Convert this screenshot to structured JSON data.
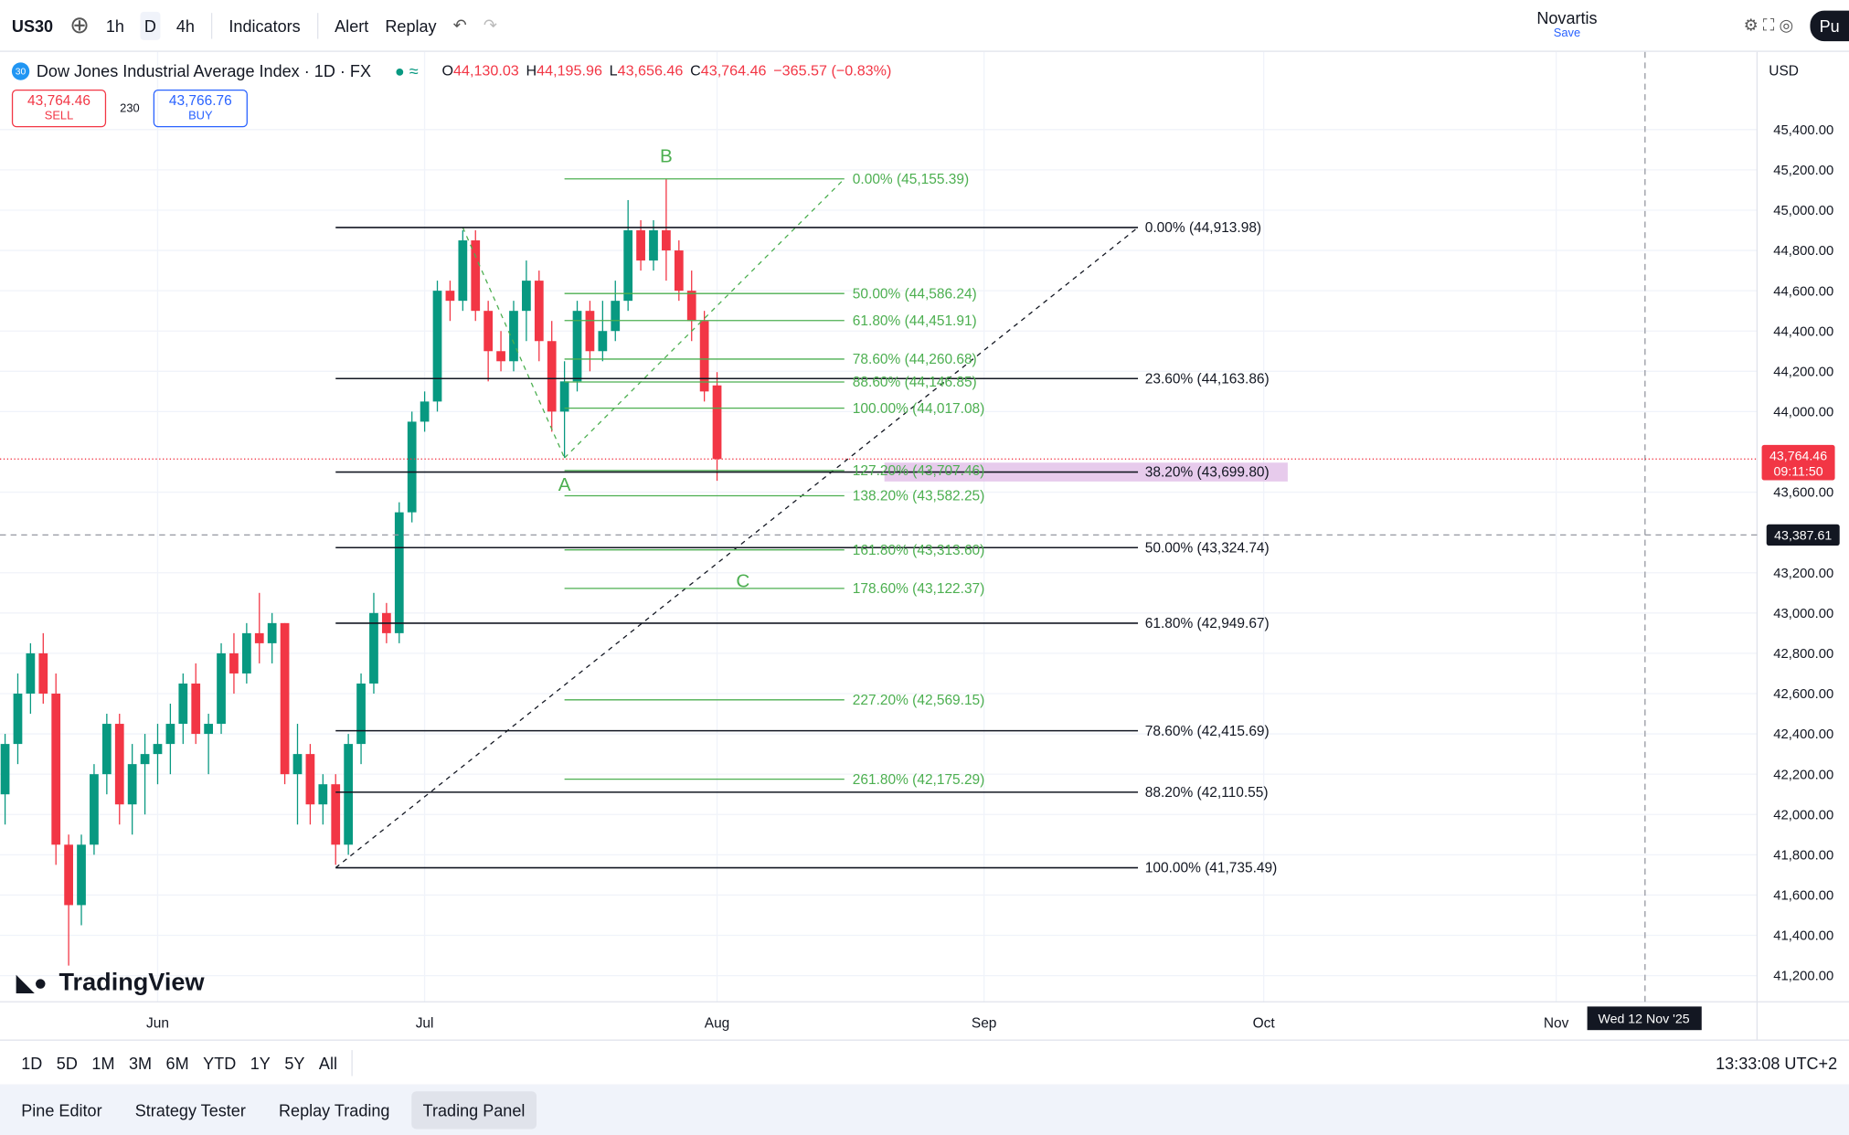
{
  "toolbar": {
    "symbol": "US30",
    "intervals": [
      "1h",
      "D",
      "4h"
    ],
    "indicators": "Indicators",
    "alert": "Alert",
    "replay": "Replay",
    "layout_name": "Novartis",
    "layout_status": "Save",
    "publish": "Pu"
  },
  "legend": {
    "badge": "30",
    "title": "Dow Jones Industrial Average Index · 1D · FX",
    "ohlc": [
      {
        "k": "O",
        "v": "44,130.03"
      },
      {
        "k": "H",
        "v": "44,195.96"
      },
      {
        "k": "L",
        "v": "43,656.46"
      },
      {
        "k": "C",
        "v": "43,764.46"
      }
    ],
    "change": "−365.57 (−0.83%)",
    "sell": {
      "price": "43,764.46",
      "label": "SELL"
    },
    "spread": "230",
    "buy": {
      "price": "43,766.76",
      "label": "BUY"
    },
    "currency": "USD"
  },
  "chart_data": {
    "type": "candlestick",
    "up_color": "#089981",
    "down_color": "#f23645",
    "candles": [
      [
        42100,
        42400,
        41950,
        42350
      ],
      [
        42350,
        42700,
        42250,
        42600
      ],
      [
        42600,
        42850,
        42500,
        42800
      ],
      [
        42800,
        42900,
        42550,
        42600
      ],
      [
        42600,
        42700,
        41750,
        41850
      ],
      [
        41850,
        41900,
        41250,
        41550
      ],
      [
        41550,
        41900,
        41450,
        41850
      ],
      [
        41850,
        42250,
        41800,
        42200
      ],
      [
        42200,
        42500,
        42100,
        42450
      ],
      [
        42450,
        42500,
        41950,
        42050
      ],
      [
        42050,
        42350,
        41900,
        42250
      ],
      [
        42250,
        42400,
        42000,
        42300
      ],
      [
        42300,
        42450,
        42150,
        42350
      ],
      [
        42350,
        42550,
        42200,
        42450
      ],
      [
        42450,
        42700,
        42350,
        42650
      ],
      [
        42650,
        42750,
        42350,
        42400
      ],
      [
        42400,
        42500,
        42200,
        42450
      ],
      [
        42450,
        42850,
        42400,
        42800
      ],
      [
        42800,
        42900,
        42600,
        42700
      ],
      [
        42700,
        42950,
        42650,
        42900
      ],
      [
        42900,
        43100,
        42750,
        42850
      ],
      [
        42850,
        43000,
        42750,
        42950
      ],
      [
        42950,
        42950,
        42150,
        42200
      ],
      [
        42200,
        42450,
        41950,
        42300
      ],
      [
        42300,
        42350,
        41950,
        42050
      ],
      [
        42050,
        42200,
        41950,
        42150
      ],
      [
        42150,
        42200,
        41750,
        41850
      ],
      [
        41850,
        42400,
        41800,
        42350
      ],
      [
        42350,
        42700,
        42250,
        42650
      ],
      [
        42650,
        43100,
        42600,
        43000
      ],
      [
        43000,
        43050,
        42850,
        42900
      ],
      [
        42900,
        43550,
        42850,
        43500
      ],
      [
        43500,
        44000,
        43450,
        43950
      ],
      [
        43950,
        44100,
        43900,
        44050
      ],
      [
        44050,
        44650,
        44000,
        44600
      ],
      [
        44600,
        44650,
        44450,
        44550
      ],
      [
        44550,
        44900,
        44500,
        44850
      ],
      [
        44850,
        44900,
        44450,
        44500
      ],
      [
        44500,
        44550,
        44150,
        44300
      ],
      [
        44300,
        44400,
        44200,
        44250
      ],
      [
        44250,
        44550,
        44200,
        44500
      ],
      [
        44500,
        44750,
        44350,
        44650
      ],
      [
        44650,
        44700,
        44250,
        44350
      ],
      [
        44350,
        44450,
        43900,
        44000
      ],
      [
        44000,
        44250,
        43770,
        44150
      ],
      [
        44150,
        44550,
        44100,
        44500
      ],
      [
        44500,
        44550,
        44200,
        44300
      ],
      [
        44300,
        44550,
        44250,
        44400
      ],
      [
        44400,
        44650,
        44350,
        44550
      ],
      [
        44550,
        45050,
        44500,
        44900
      ],
      [
        44900,
        44950,
        44700,
        44750
      ],
      [
        44750,
        44950,
        44700,
        44900
      ],
      [
        44900,
        45155,
        44650,
        44800
      ],
      [
        44800,
        44850,
        44550,
        44600
      ],
      [
        44600,
        44700,
        44350,
        44450
      ],
      [
        44450,
        44500,
        44050,
        44100
      ],
      [
        44130.03,
        44195.96,
        43656.46,
        43764.46
      ]
    ],
    "xlim": [
      -0.4,
      137.8
    ],
    "xticks": [
      {
        "value": 12,
        "label": "Jun"
      },
      {
        "value": 33,
        "label": "Jul"
      },
      {
        "value": 56,
        "label": "Aug"
      },
      {
        "value": 77,
        "label": "Sep"
      },
      {
        "value": 99,
        "label": "Oct"
      },
      {
        "value": 122,
        "label": "Nov"
      }
    ],
    "ylim": [
      41070,
      45780
    ],
    "yticks": [
      {
        "value": 41200,
        "label": "41,200.00"
      },
      {
        "value": 41400,
        "label": "41,400.00"
      },
      {
        "value": 41600,
        "label": "41,600.00"
      },
      {
        "value": 41800,
        "label": "41,800.00"
      },
      {
        "value": 42000,
        "label": "42,000.00"
      },
      {
        "value": 42200,
        "label": "42,200.00"
      },
      {
        "value": 42400,
        "label": "42,400.00"
      },
      {
        "value": 42600,
        "label": "42,600.00"
      },
      {
        "value": 42800,
        "label": "42,800.00"
      },
      {
        "value": 43000,
        "label": "43,000.00"
      },
      {
        "value": 43200,
        "label": "43,200.00"
      },
      {
        "value": 43600,
        "label": "43,600.00"
      },
      {
        "value": 44000,
        "label": "44,000.00"
      },
      {
        "value": 44200,
        "label": "44,200.00"
      },
      {
        "value": 44400,
        "label": "44,400.00"
      },
      {
        "value": 44600,
        "label": "44,600.00"
      },
      {
        "value": 44800,
        "label": "44,800.00"
      },
      {
        "value": 45000,
        "label": "45,000.00"
      },
      {
        "value": 45200,
        "label": "45,200.00"
      },
      {
        "value": 45400,
        "label": "45,400.00"
      }
    ],
    "fib_retracement": {
      "color": "#131722",
      "levels": [
        {
          "value": 44913.98,
          "label": "0.00% (44,913.98)"
        },
        {
          "value": 44163.86,
          "label": "23.60% (44,163.86)"
        },
        {
          "value": 43699.8,
          "label": "38.20% (43,699.80)"
        },
        {
          "value": 43324.74,
          "label": "50.00% (43,324.74)"
        },
        {
          "value": 42949.67,
          "label": "61.80% (42,949.67)"
        },
        {
          "value": 42415.69,
          "label": "78.60% (42,415.69)"
        },
        {
          "value": 42110.55,
          "label": "88.20% (42,110.55)"
        },
        {
          "value": 41735.49,
          "label": "100.00% (41,735.49)"
        }
      ]
    },
    "fib_extension": {
      "color": "#4caf50",
      "levels": [
        {
          "value": 45155.39,
          "label": "0.00% (45,155.39)"
        },
        {
          "value": 44586.24,
          "label": "50.00% (44,586.24)"
        },
        {
          "value": 44451.91,
          "label": "61.80% (44,451.91)"
        },
        {
          "value": 44260.68,
          "label": "78.60% (44,260.68)"
        },
        {
          "value": 44146.85,
          "label": "88.60% (44,146.85)"
        },
        {
          "value": 44017.08,
          "label": "100.00% (44,017.08)"
        },
        {
          "value": 43707.46,
          "label": "127.20% (43,707.46)"
        },
        {
          "value": 43582.25,
          "label": "138.20% (43,582.25)"
        },
        {
          "value": 43313.6,
          "label": "161.80% (43,313.60)"
        },
        {
          "value": 43122.37,
          "label": "178.60% (43,122.37)"
        },
        {
          "value": 42569.15,
          "label": "227.20% (42,569.15)"
        },
        {
          "value": 42175.29,
          "label": "261.80% (42,175.29)"
        }
      ]
    },
    "points": [
      "A",
      "B",
      "C"
    ],
    "last_price": {
      "value": 43764.46,
      "label": "43,764.46",
      "countdown": "09:11:50"
    },
    "crosshair": {
      "value": 43387.61,
      "label": "43,387.61",
      "date": "Wed 12 Nov '25"
    },
    "watermark": "TradingView"
  },
  "footer": {
    "ranges": [
      "1D",
      "5D",
      "1M",
      "3M",
      "6M",
      "YTD",
      "1Y",
      "5Y",
      "All"
    ],
    "clock": "13:33:08 UTC+2",
    "tabs": [
      "Pine Editor",
      "Strategy Tester",
      "Replay Trading",
      "Trading Panel"
    ]
  }
}
